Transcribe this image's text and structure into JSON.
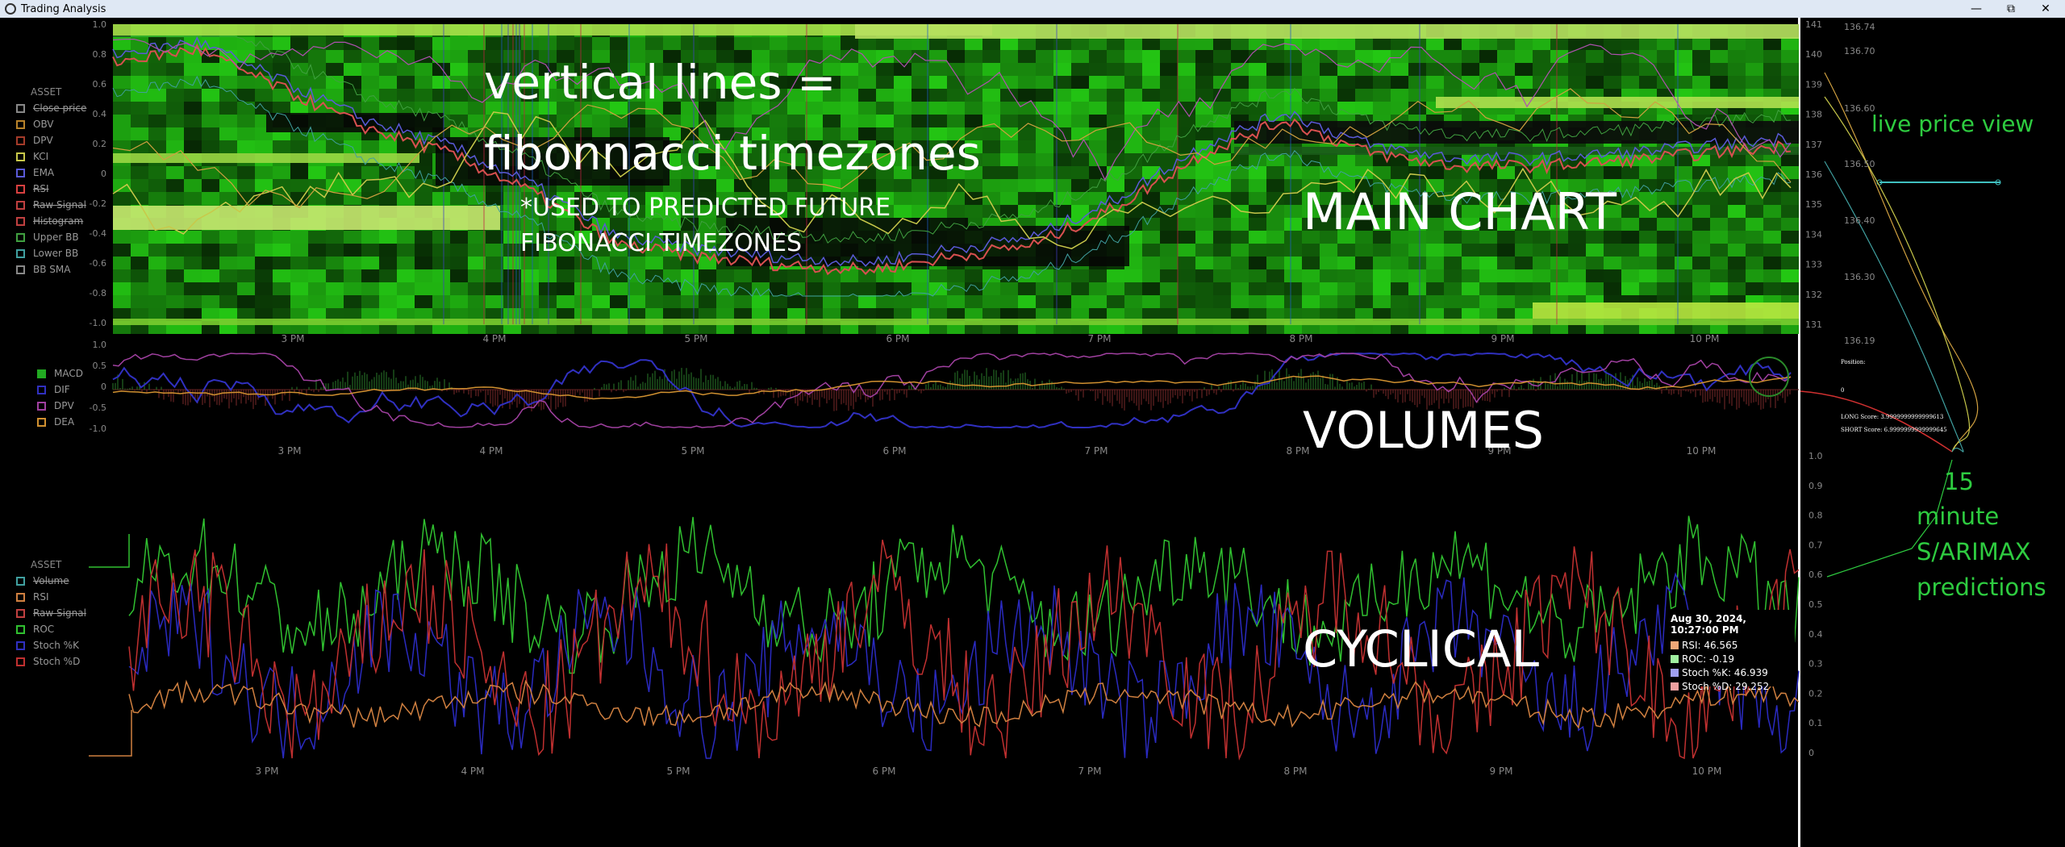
{
  "window": {
    "title": "Trading Analysis",
    "controls": [
      "minimize",
      "restore",
      "close"
    ]
  },
  "main_chart": {
    "left_axis": [
      "1.0",
      "0.8",
      "0.6",
      "0.4",
      "0.2",
      "0",
      "-0.2",
      "-0.4",
      "-0.6",
      "-0.8",
      "-1.0"
    ],
    "right_axis": [
      "141",
      "140",
      "139",
      "138",
      "137",
      "136",
      "135",
      "134",
      "133",
      "132",
      "131"
    ],
    "x_labels": [
      "3 PM",
      "4 PM",
      "5 PM",
      "6 PM",
      "7 PM",
      "8 PM",
      "9 PM",
      "10 PM"
    ],
    "legend": {
      "header": "ASSET",
      "items": [
        {
          "label": "Close price",
          "color": "#888888",
          "struck": true
        },
        {
          "label": "OBV",
          "color": "#b8822a",
          "struck": false
        },
        {
          "label": "DPV",
          "color": "#a43b2a",
          "struck": false
        },
        {
          "label": "KCI",
          "color": "#c8c84a",
          "struck": false
        },
        {
          "label": "EMA",
          "color": "#5a5ad8",
          "struck": false
        },
        {
          "label": "RSI",
          "color": "#d84040",
          "struck": true
        },
        {
          "label": "Raw Signal",
          "color": "#c04040",
          "struck": true
        },
        {
          "label": "Histogram",
          "color": "#c04040",
          "struck": true
        },
        {
          "label": "Upper BB",
          "color": "#40a040",
          "struck": false
        },
        {
          "label": "Lower BB",
          "color": "#40a0a0",
          "struck": false
        },
        {
          "label": "BB SMA",
          "color": "#888888",
          "struck": false
        }
      ]
    }
  },
  "volumes_chart": {
    "left_axis": [
      "1.0",
      "0.5",
      "0",
      "-0.5",
      "-1.0"
    ],
    "x_labels": [
      "3 PM",
      "4 PM",
      "5 PM",
      "6 PM",
      "7 PM",
      "8 PM",
      "9 PM",
      "10 PM"
    ],
    "legend": {
      "items": [
        {
          "label": "MACD",
          "color": "#22aa22",
          "filled": true
        },
        {
          "label": "DIF",
          "color": "#3030c0",
          "filled": false
        },
        {
          "label": "DPV",
          "color": "#a040a0",
          "filled": false
        },
        {
          "label": "DEA",
          "color": "#d09030",
          "filled": false
        }
      ]
    }
  },
  "cyclical_chart": {
    "x_labels": [
      "3 PM",
      "4 PM",
      "5 PM",
      "6 PM",
      "7 PM",
      "8 PM",
      "9 PM",
      "10 PM"
    ],
    "legend": {
      "header": "ASSET",
      "items": [
        {
          "label": "Volume",
          "color": "#40a0a0",
          "struck": true
        },
        {
          "label": "RSI",
          "color": "#d08040",
          "struck": false
        },
        {
          "label": "Raw Signal",
          "color": "#c04040",
          "struck": true
        },
        {
          "label": "ROC",
          "color": "#30c030",
          "struck": false
        },
        {
          "label": "Stoch %K",
          "color": "#3030c0",
          "struck": false
        },
        {
          "label": "Stoch %D",
          "color": "#c03030",
          "struck": false
        }
      ]
    },
    "tooltip": {
      "timestamp": "Aug 30, 2024, 10:27:00 PM",
      "rows": [
        {
          "label": "RSI: 46.565",
          "color": "#f0a878"
        },
        {
          "label": "ROC: -0.19",
          "color": "#a0f0a0"
        },
        {
          "label": "Stoch %K: 46.939",
          "color": "#a0a0f0"
        },
        {
          "label": "Stoch %D: 29.252",
          "color": "#f0a0a0"
        }
      ]
    }
  },
  "side_panel": {
    "price_axis": [
      "136.74",
      "136.70",
      "136.60",
      "136.50",
      "136.40",
      "136.30",
      "136.19"
    ],
    "prediction_axis": [
      "1.0",
      "0.9",
      "0.8",
      "0.7",
      "0.6",
      "0.5",
      "0.4",
      "0.3",
      "0.2",
      "0.1",
      "0"
    ],
    "position_label": "Position:",
    "position_value": "0",
    "long_score": "LONG Score: 3.9999999999999613",
    "short_score": "SHORT Score: 6.9999999999999645"
  },
  "annotations": {
    "vertical_lines_1": "vertical lines =",
    "vertical_lines_2": "fibonnacci timezones",
    "used_1": "*USED TO PREDICTED FUTURE",
    "used_2": "FIBONACCI TIMEZONES",
    "main_chart": "MAIN CHART",
    "volumes": "VOLUMES",
    "cyclical": "CYCLICAL",
    "live_price": "live price view",
    "pred_1": "15",
    "pred_2": "minute",
    "pred_3": "S/ARIMAX",
    "pred_4": "predictions"
  }
}
